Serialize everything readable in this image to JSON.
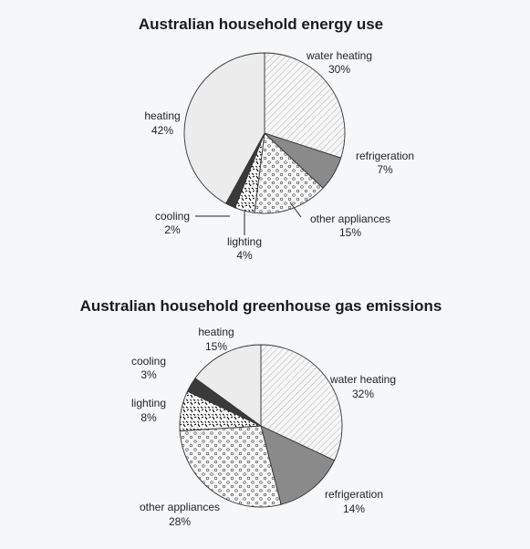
{
  "chart_data": [
    {
      "type": "pie",
      "title": "Australian household energy use",
      "slices": [
        {
          "label": "water heating",
          "value": 30,
          "value_label": "30%"
        },
        {
          "label": "refrigeration",
          "value": 7,
          "value_label": "7%"
        },
        {
          "label": "other appliances",
          "value": 15,
          "value_label": "15%"
        },
        {
          "label": "lighting",
          "value": 4,
          "value_label": "4%"
        },
        {
          "label": "cooling",
          "value": 2,
          "value_label": "2%"
        },
        {
          "label": "heating",
          "value": 42,
          "value_label": "42%"
        }
      ]
    },
    {
      "type": "pie",
      "title": "Australian household greenhouse gas emissions",
      "slices": [
        {
          "label": "water heating",
          "value": 32,
          "value_label": "32%"
        },
        {
          "label": "refrigeration",
          "value": 14,
          "value_label": "14%"
        },
        {
          "label": "other appliances",
          "value": 28,
          "value_label": "28%"
        },
        {
          "label": "lighting",
          "value": 8,
          "value_label": "8%"
        },
        {
          "label": "cooling",
          "value": 3,
          "value_label": "3%"
        },
        {
          "label": "heating",
          "value": 15,
          "value_label": "15%"
        }
      ]
    }
  ],
  "fills": {
    "water heating": "hatch",
    "refrigeration": "#8a8a8a",
    "other appliances": "circles",
    "lighting": "squiggles",
    "cooling": "#3a3a3a",
    "heating": "#ececec"
  }
}
